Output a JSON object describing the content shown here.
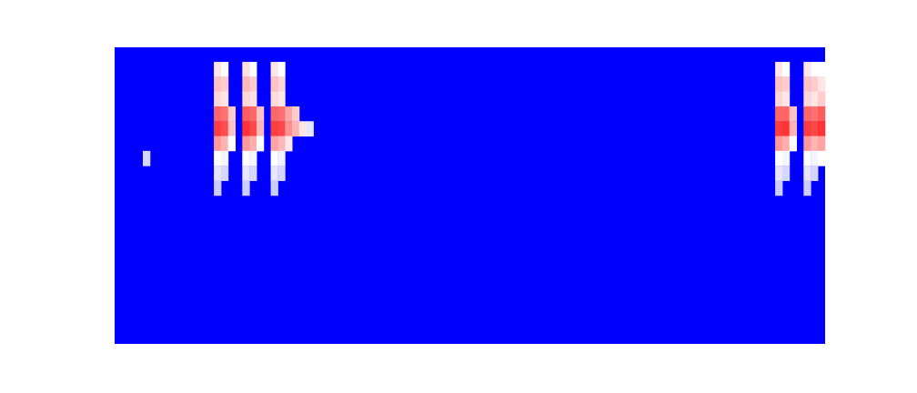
{
  "chart_data": {
    "type": "heatmap",
    "tick_labels": false,
    "xlim": [
      0,
      100
    ],
    "ylim": [
      0,
      20
    ],
    "value_range": [
      0,
      1
    ],
    "cells": [
      [
        4,
        7,
        0.42
      ],
      [
        14,
        1,
        0.55
      ],
      [
        14,
        2,
        0.62
      ],
      [
        14,
        3,
        0.58
      ],
      [
        14,
        4,
        0.8
      ],
      [
        14,
        5,
        0.88
      ],
      [
        14,
        6,
        0.7
      ],
      [
        14,
        7,
        0.5
      ],
      [
        14,
        8,
        0.45
      ],
      [
        14,
        9,
        0.4
      ],
      [
        15,
        1,
        0.5
      ],
      [
        15,
        2,
        0.6
      ],
      [
        15,
        3,
        0.55
      ],
      [
        15,
        4,
        0.78
      ],
      [
        15,
        5,
        0.85
      ],
      [
        15,
        6,
        0.65
      ],
      [
        15,
        7,
        0.48
      ],
      [
        15,
        8,
        0.42
      ],
      [
        16,
        4,
        0.6
      ],
      [
        16,
        5,
        0.62
      ],
      [
        16,
        6,
        0.5
      ],
      [
        18,
        1,
        0.56
      ],
      [
        18,
        2,
        0.64
      ],
      [
        18,
        3,
        0.58
      ],
      [
        18,
        4,
        0.82
      ],
      [
        18,
        5,
        0.9
      ],
      [
        18,
        6,
        0.7
      ],
      [
        18,
        7,
        0.5
      ],
      [
        18,
        8,
        0.45
      ],
      [
        18,
        9,
        0.4
      ],
      [
        19,
        1,
        0.5
      ],
      [
        19,
        2,
        0.6
      ],
      [
        19,
        3,
        0.56
      ],
      [
        19,
        4,
        0.8
      ],
      [
        19,
        5,
        0.86
      ],
      [
        19,
        6,
        0.66
      ],
      [
        19,
        7,
        0.48
      ],
      [
        19,
        8,
        0.42
      ],
      [
        20,
        4,
        0.62
      ],
      [
        20,
        5,
        0.64
      ],
      [
        20,
        6,
        0.5
      ],
      [
        22,
        1,
        0.55
      ],
      [
        22,
        2,
        0.62
      ],
      [
        22,
        3,
        0.57
      ],
      [
        22,
        4,
        0.8
      ],
      [
        22,
        5,
        0.88
      ],
      [
        22,
        6,
        0.68
      ],
      [
        22,
        7,
        0.5
      ],
      [
        22,
        8,
        0.45
      ],
      [
        22,
        9,
        0.4
      ],
      [
        23,
        1,
        0.5
      ],
      [
        23,
        2,
        0.58
      ],
      [
        23,
        3,
        0.55
      ],
      [
        23,
        4,
        0.78
      ],
      [
        23,
        5,
        0.86
      ],
      [
        23,
        6,
        0.64
      ],
      [
        23,
        7,
        0.47
      ],
      [
        23,
        8,
        0.42
      ],
      [
        24,
        4,
        0.68
      ],
      [
        24,
        5,
        0.72
      ],
      [
        24,
        6,
        0.55
      ],
      [
        25,
        4,
        0.6
      ],
      [
        25,
        5,
        0.65
      ],
      [
        26,
        5,
        0.55
      ],
      [
        27,
        5,
        0.45
      ],
      [
        93,
        1,
        0.55
      ],
      [
        93,
        2,
        0.62
      ],
      [
        93,
        3,
        0.58
      ],
      [
        93,
        4,
        0.8
      ],
      [
        93,
        5,
        0.88
      ],
      [
        93,
        6,
        0.7
      ],
      [
        93,
        7,
        0.5
      ],
      [
        93,
        8,
        0.45
      ],
      [
        93,
        9,
        0.4
      ],
      [
        94,
        1,
        0.5
      ],
      [
        94,
        2,
        0.6
      ],
      [
        94,
        3,
        0.55
      ],
      [
        94,
        4,
        0.8
      ],
      [
        94,
        5,
        0.9
      ],
      [
        94,
        6,
        0.66
      ],
      [
        94,
        7,
        0.48
      ],
      [
        94,
        8,
        0.42
      ],
      [
        95,
        4,
        0.62
      ],
      [
        95,
        5,
        0.65
      ],
      [
        95,
        6,
        0.5
      ],
      [
        97,
        1,
        0.55
      ],
      [
        97,
        2,
        0.62
      ],
      [
        97,
        3,
        0.58
      ],
      [
        97,
        4,
        0.8
      ],
      [
        97,
        5,
        0.88
      ],
      [
        97,
        6,
        0.7
      ],
      [
        97,
        7,
        0.5
      ],
      [
        97,
        8,
        0.45
      ],
      [
        97,
        9,
        0.4
      ],
      [
        98,
        1,
        0.5
      ],
      [
        98,
        2,
        0.6
      ],
      [
        98,
        3,
        0.55
      ],
      [
        98,
        4,
        0.78
      ],
      [
        98,
        5,
        0.86
      ],
      [
        98,
        6,
        0.65
      ],
      [
        98,
        7,
        0.48
      ],
      [
        98,
        8,
        0.42
      ],
      [
        99,
        1,
        0.5
      ],
      [
        99,
        2,
        0.55
      ],
      [
        99,
        3,
        0.6
      ],
      [
        99,
        4,
        0.82
      ],
      [
        99,
        5,
        0.9
      ],
      [
        99,
        6,
        0.68
      ],
      [
        99,
        7,
        0.5
      ]
    ]
  }
}
